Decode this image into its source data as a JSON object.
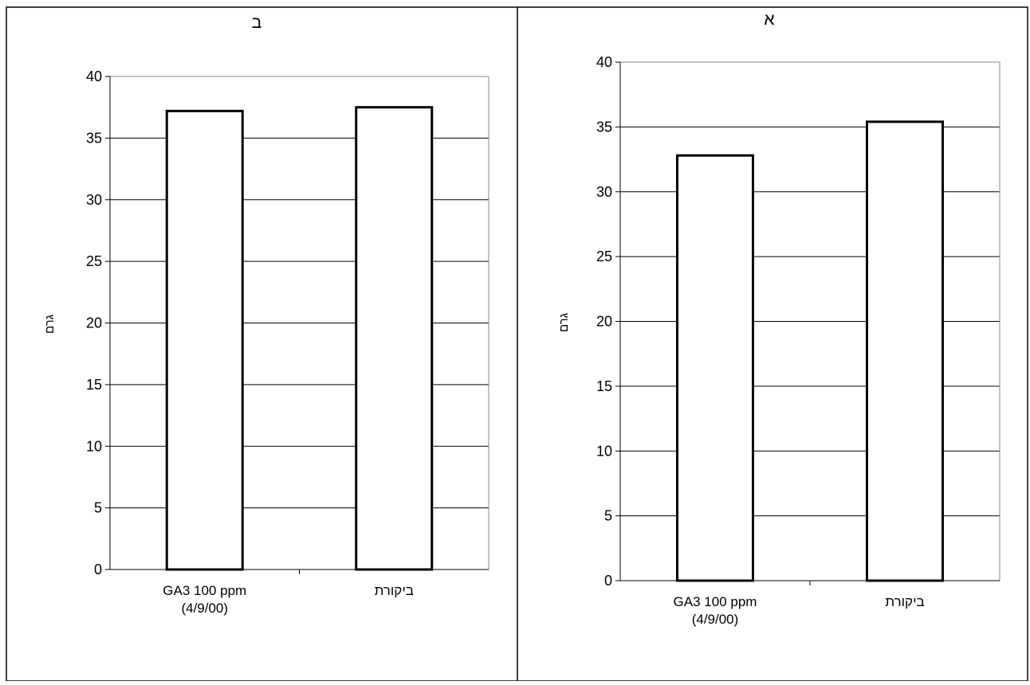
{
  "chart_data": [
    {
      "panel_label": "ב",
      "type": "bar",
      "ylabel": "גרם",
      "ylim": [
        0,
        40
      ],
      "yticks": [
        0,
        5,
        10,
        15,
        20,
        25,
        30,
        35,
        40
      ],
      "grid": true,
      "categories": [
        {
          "lines": [
            "GA3 100 ppm",
            "(4/9/00)"
          ]
        },
        {
          "lines": [
            "ביקורת"
          ]
        }
      ],
      "values": [
        37.2,
        37.5
      ]
    },
    {
      "panel_label": "א",
      "type": "bar",
      "ylabel": "גרם",
      "ylim": [
        0,
        40
      ],
      "yticks": [
        0,
        5,
        10,
        15,
        20,
        25,
        30,
        35,
        40
      ],
      "grid": true,
      "categories": [
        {
          "lines": [
            "GA3 100 ppm",
            "(4/9/00)"
          ]
        },
        {
          "lines": [
            "ביקורת"
          ]
        }
      ],
      "values": [
        32.8,
        35.4
      ]
    }
  ]
}
